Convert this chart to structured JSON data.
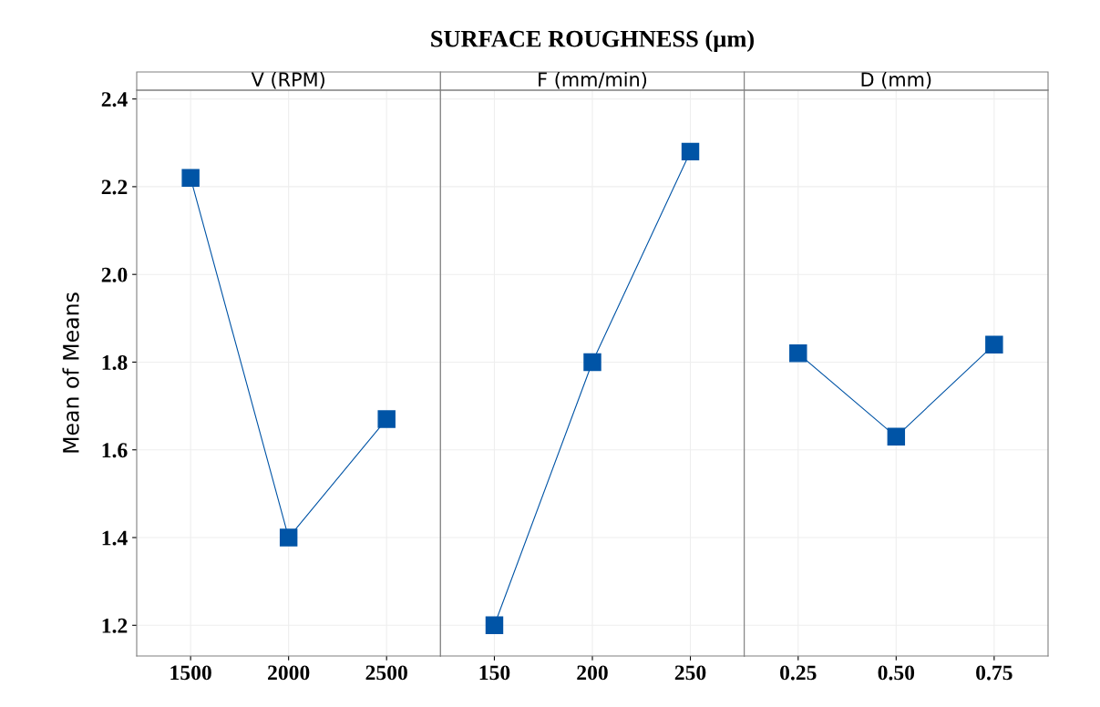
{
  "chart_data": [
    {
      "type": "line",
      "subtitle": "V (RPM)",
      "ylabel": "Mean of Means",
      "categories": [
        "1500",
        "2000",
        "2500"
      ],
      "series": [
        {
          "color": "#0054a6",
          "values": [
            2.22,
            1.4,
            1.67
          ]
        }
      ],
      "ylim": [
        1.13,
        2.42
      ],
      "yticks": [
        1.2,
        1.4,
        1.6,
        1.8,
        {
          "value": 2.0,
          "label": "2.0"
        },
        2.2,
        2.4
      ],
      "grid": true,
      "marker": "square",
      "line_style": "solid"
    },
    {
      "type": "line",
      "title": "SURFACE ROUGHNESS (µm)",
      "subtitle": "F (mm/min)",
      "categories": [
        "150",
        "200",
        "250"
      ],
      "series": [
        {
          "color": "#0054a6",
          "values": [
            1.2,
            1.8,
            2.28
          ]
        }
      ],
      "ylim": [
        1.13,
        2.42
      ],
      "yticks": [
        1.2,
        1.4,
        1.6,
        1.8,
        2,
        2.2,
        2.4
      ],
      "tick_labels": "x",
      "grid": true,
      "marker": "square",
      "line_style": "solid"
    },
    {
      "type": "line",
      "subtitle": "D (mm)",
      "categories": [
        "0.25",
        "0.50",
        "0.75"
      ],
      "series": [
        {
          "color": "#0054a6",
          "values": [
            1.82,
            1.63,
            1.84
          ]
        }
      ],
      "ylim": [
        1.13,
        2.42
      ],
      "yticks": [
        1.2,
        1.4,
        1.6,
        1.8,
        2,
        2.2,
        2.4
      ],
      "tick_labels": "x",
      "grid": true,
      "marker": "square",
      "line_style": "solid"
    }
  ]
}
